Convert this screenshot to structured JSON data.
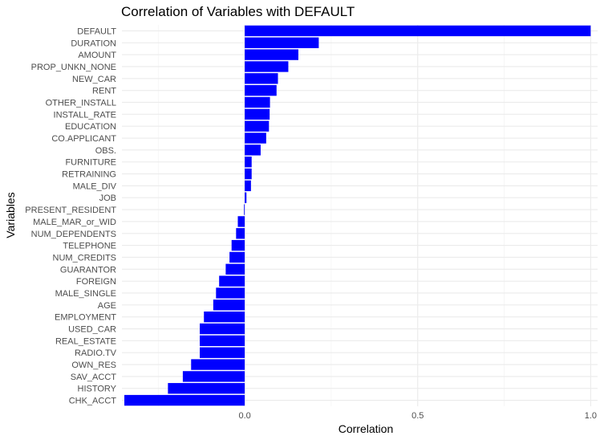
{
  "chart_data": {
    "type": "bar",
    "orientation": "horizontal",
    "title": "Correlation of Variables with DEFAULT",
    "xlabel": "Correlation",
    "ylabel": "Variables",
    "xlim": [
      -0.355,
      1.02
    ],
    "x_ticks": [
      {
        "value": 0.0,
        "label": "0.0"
      },
      {
        "value": 0.5,
        "label": "0.5"
      },
      {
        "value": 1.0,
        "label": "1.0"
      }
    ],
    "grid": true,
    "bar_color": "#0000ff",
    "categories": [
      "DEFAULT",
      "DURATION",
      "AMOUNT",
      "PROP_UNKN_NONE",
      "NEW_CAR",
      "RENT",
      "OTHER_INSTALL",
      "INSTALL_RATE",
      "EDUCATION",
      "CO.APPLICANT",
      "OBS.",
      "FURNITURE",
      "RETRAINING",
      "MALE_DIV",
      "JOB",
      "PRESENT_RESIDENT",
      "MALE_MAR_or_WID",
      "NUM_DEPENDENTS",
      "TELEPHONE",
      "NUM_CREDITS",
      "GUARANTOR",
      "FOREIGN",
      "MALE_SINGLE",
      "AGE",
      "EMPLOYMENT",
      "USED_CAR",
      "REAL_ESTATE",
      "RADIO.TV",
      "OWN_RES",
      "SAV_ACCT",
      "HISTORY",
      "CHK_ACCT"
    ],
    "values": [
      1.0,
      0.214,
      0.155,
      0.126,
      0.096,
      0.092,
      0.073,
      0.072,
      0.07,
      0.062,
      0.046,
      0.02,
      0.02,
      0.018,
      0.005,
      -0.002,
      -0.02,
      -0.025,
      -0.038,
      -0.044,
      -0.055,
      -0.074,
      -0.083,
      -0.091,
      -0.118,
      -0.13,
      -0.13,
      -0.13,
      -0.155,
      -0.179,
      -0.222,
      -0.348
    ]
  }
}
